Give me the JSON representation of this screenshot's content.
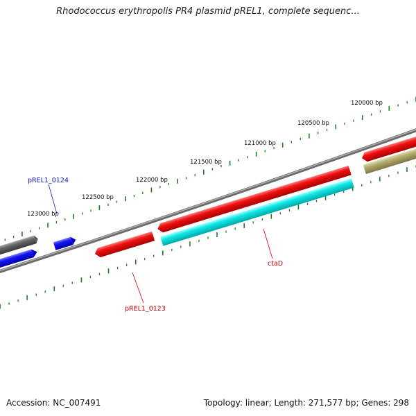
{
  "title": "Rhodococcus erythropolis PR4 plasmid pREL1, complete sequenc...",
  "footer": {
    "accession": "Accession: NC_007491",
    "summary": "Topology: linear; Length: 271,577 bp; Genes: 298"
  },
  "colors": {
    "ruler": "#1f7a1f",
    "backbone": "#808080",
    "red_gene": "#ee1111",
    "cyan_gene": "#11e8e8",
    "blue_gene": "#1515ee",
    "gray_gene": "#666666",
    "olive_gene": "#b5ad6e",
    "label_blue": "#1515cc",
    "label_red": "#cc0000"
  },
  "ruler_labels": [
    "120000 bp",
    "120500 bp",
    "121000 bp",
    "121500 bp",
    "122000 bp",
    "122500 bp",
    "123000 bp"
  ],
  "gene_labels": [
    {
      "text": "pREL1_0124",
      "color": "label_blue"
    },
    {
      "text": "ctaD",
      "color": "label_red"
    },
    {
      "text": "pREL1_0123",
      "color": "label_red"
    }
  ]
}
